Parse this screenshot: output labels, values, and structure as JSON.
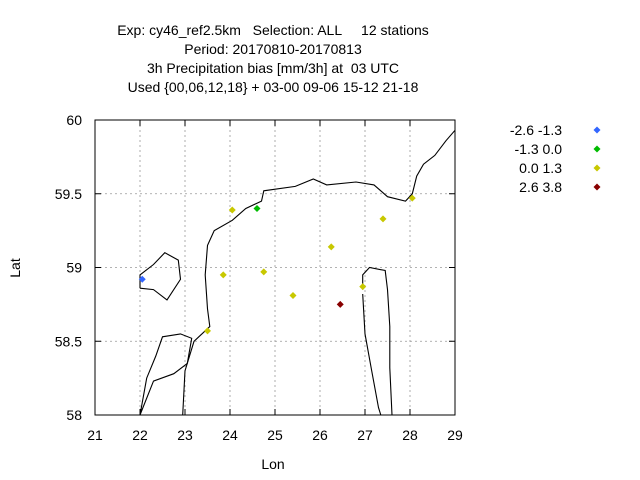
{
  "chart_data": {
    "type": "scatter",
    "title_lines": [
      "Exp: cy46_ref2.5km   Selection: ALL     12 stations",
      "Period: 20170810-20170813",
      "3h Precipitation bias [mm/3h] at  03 UTC",
      "Used {00,06,12,18} + 03-00 09-06 15-12 21-18"
    ],
    "xlabel": "Lon",
    "ylabel": "Lat",
    "xlim": [
      21,
      29
    ],
    "ylim": [
      58,
      60
    ],
    "xticks": [
      21,
      22,
      23,
      24,
      25,
      26,
      27,
      28,
      29
    ],
    "yticks": [
      58,
      58.5,
      59,
      59.5,
      60
    ],
    "ytick_labels": [
      "58",
      "58.5",
      "59",
      "59.5",
      "60"
    ],
    "grid": true,
    "legend_position": "right",
    "series": [
      {
        "name": "-2.6 -1.3",
        "color": "#3366ff",
        "points": [
          [
            22.05,
            58.92
          ]
        ]
      },
      {
        "name": "-1.3 0.0",
        "color": "#00bb00",
        "points": [
          [
            24.6,
            59.4
          ]
        ]
      },
      {
        "name": "0.0 1.3",
        "color": "#c8c800",
        "points": [
          [
            24.05,
            59.39
          ],
          [
            28.05,
            59.47
          ],
          [
            27.4,
            59.33
          ],
          [
            26.25,
            59.14
          ],
          [
            23.85,
            58.95
          ],
          [
            24.75,
            58.97
          ],
          [
            25.4,
            58.81
          ],
          [
            26.95,
            58.87
          ],
          [
            23.5,
            58.57
          ]
        ]
      },
      {
        "name": "2.6 3.8",
        "color": "#880000",
        "points": [
          [
            26.45,
            58.75
          ]
        ]
      }
    ]
  }
}
